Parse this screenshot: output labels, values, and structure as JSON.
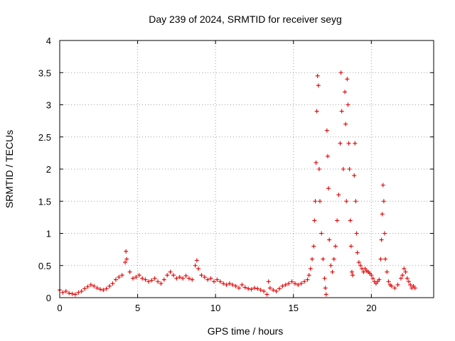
{
  "chart_data": {
    "type": "scatter",
    "title": "Day 239 of 2024, SRMTID for receiver seyg",
    "xlabel": "GPS time / hours",
    "ylabel": "SRMTID / TECUs",
    "xlim": [
      0,
      24
    ],
    "ylim": [
      0,
      4
    ],
    "xticks": [
      "0",
      "5",
      "10",
      "15",
      "20"
    ],
    "yticks": [
      "0",
      "0.5",
      "1",
      "1.5",
      "2",
      "2.5",
      "3",
      "3.5",
      "4"
    ],
    "grid": true,
    "marker": "+",
    "color": "#e00000",
    "series": [
      {
        "name": "SRMTID",
        "points": [
          [
            0.0,
            0.12
          ],
          [
            0.2,
            0.08
          ],
          [
            0.4,
            0.1
          ],
          [
            0.6,
            0.07
          ],
          [
            0.8,
            0.06
          ],
          [
            1.0,
            0.05
          ],
          [
            1.2,
            0.08
          ],
          [
            1.4,
            0.1
          ],
          [
            1.6,
            0.14
          ],
          [
            1.8,
            0.17
          ],
          [
            2.0,
            0.2
          ],
          [
            2.2,
            0.18
          ],
          [
            2.4,
            0.15
          ],
          [
            2.6,
            0.13
          ],
          [
            2.8,
            0.12
          ],
          [
            3.0,
            0.14
          ],
          [
            3.2,
            0.18
          ],
          [
            3.4,
            0.22
          ],
          [
            3.6,
            0.28
          ],
          [
            3.8,
            0.32
          ],
          [
            4.0,
            0.35
          ],
          [
            4.2,
            0.55
          ],
          [
            4.25,
            0.72
          ],
          [
            4.3,
            0.6
          ],
          [
            4.5,
            0.4
          ],
          [
            4.7,
            0.3
          ],
          [
            4.9,
            0.32
          ],
          [
            5.1,
            0.35
          ],
          [
            5.3,
            0.3
          ],
          [
            5.5,
            0.28
          ],
          [
            5.7,
            0.25
          ],
          [
            5.9,
            0.27
          ],
          [
            6.1,
            0.3
          ],
          [
            6.3,
            0.25
          ],
          [
            6.5,
            0.22
          ],
          [
            6.7,
            0.28
          ],
          [
            6.9,
            0.35
          ],
          [
            7.1,
            0.4
          ],
          [
            7.3,
            0.35
          ],
          [
            7.5,
            0.3
          ],
          [
            7.7,
            0.32
          ],
          [
            7.9,
            0.3
          ],
          [
            8.1,
            0.34
          ],
          [
            8.3,
            0.3
          ],
          [
            8.5,
            0.28
          ],
          [
            8.7,
            0.5
          ],
          [
            8.8,
            0.58
          ],
          [
            8.9,
            0.45
          ],
          [
            9.1,
            0.35
          ],
          [
            9.3,
            0.32
          ],
          [
            9.5,
            0.28
          ],
          [
            9.7,
            0.3
          ],
          [
            9.9,
            0.25
          ],
          [
            10.1,
            0.28
          ],
          [
            10.3,
            0.25
          ],
          [
            10.5,
            0.22
          ],
          [
            10.7,
            0.2
          ],
          [
            10.9,
            0.22
          ],
          [
            11.1,
            0.2
          ],
          [
            11.3,
            0.18
          ],
          [
            11.5,
            0.15
          ],
          [
            11.7,
            0.2
          ],
          [
            11.9,
            0.16
          ],
          [
            12.1,
            0.14
          ],
          [
            12.3,
            0.13
          ],
          [
            12.5,
            0.15
          ],
          [
            12.7,
            0.14
          ],
          [
            12.9,
            0.12
          ],
          [
            13.1,
            0.1
          ],
          [
            13.3,
            0.05
          ],
          [
            13.4,
            0.25
          ],
          [
            13.5,
            0.15
          ],
          [
            13.7,
            0.12
          ],
          [
            13.9,
            0.1
          ],
          [
            14.1,
            0.14
          ],
          [
            14.3,
            0.18
          ],
          [
            14.5,
            0.2
          ],
          [
            14.7,
            0.22
          ],
          [
            14.9,
            0.25
          ],
          [
            15.1,
            0.22
          ],
          [
            15.3,
            0.2
          ],
          [
            15.5,
            0.22
          ],
          [
            15.7,
            0.25
          ],
          [
            15.9,
            0.28
          ],
          [
            16.0,
            0.35
          ],
          [
            16.1,
            0.45
          ],
          [
            16.2,
            0.6
          ],
          [
            16.3,
            0.8
          ],
          [
            16.35,
            1.2
          ],
          [
            16.4,
            1.5
          ],
          [
            16.45,
            2.1
          ],
          [
            16.5,
            2.9
          ],
          [
            16.55,
            3.45
          ],
          [
            16.6,
            3.3
          ],
          [
            16.65,
            2.0
          ],
          [
            16.7,
            1.5
          ],
          [
            16.8,
            1.0
          ],
          [
            16.9,
            0.6
          ],
          [
            17.0,
            0.3
          ],
          [
            17.05,
            0.15
          ],
          [
            17.1,
            0.05
          ],
          [
            17.15,
            2.6
          ],
          [
            17.2,
            2.2
          ],
          [
            17.25,
            1.7
          ],
          [
            17.3,
            0.9
          ],
          [
            17.4,
            0.5
          ],
          [
            17.5,
            0.4
          ],
          [
            17.6,
            0.6
          ],
          [
            17.7,
            0.8
          ],
          [
            17.8,
            1.2
          ],
          [
            17.9,
            1.6
          ],
          [
            18.0,
            2.4
          ],
          [
            18.05,
            3.5
          ],
          [
            18.1,
            2.9
          ],
          [
            18.2,
            2.0
          ],
          [
            18.3,
            3.2
          ],
          [
            18.35,
            2.7
          ],
          [
            18.4,
            1.5
          ],
          [
            18.45,
            3.4
          ],
          [
            18.5,
            3.0
          ],
          [
            18.55,
            2.4
          ],
          [
            18.6,
            2.0
          ],
          [
            18.65,
            1.2
          ],
          [
            18.7,
            0.8
          ],
          [
            18.75,
            0.4
          ],
          [
            18.8,
            0.35
          ],
          [
            18.9,
            1.9
          ],
          [
            18.95,
            2.4
          ],
          [
            19.0,
            1.5
          ],
          [
            19.05,
            1.0
          ],
          [
            19.1,
            0.7
          ],
          [
            19.2,
            0.55
          ],
          [
            19.3,
            0.5
          ],
          [
            19.4,
            0.45
          ],
          [
            19.5,
            0.4
          ],
          [
            19.6,
            0.45
          ],
          [
            19.7,
            0.42
          ],
          [
            19.8,
            0.4
          ],
          [
            19.9,
            0.38
          ],
          [
            20.0,
            0.35
          ],
          [
            20.1,
            0.3
          ],
          [
            20.2,
            0.25
          ],
          [
            20.3,
            0.22
          ],
          [
            20.4,
            0.25
          ],
          [
            20.5,
            0.28
          ],
          [
            20.6,
            0.6
          ],
          [
            20.65,
            0.9
          ],
          [
            20.7,
            1.3
          ],
          [
            20.75,
            1.75
          ],
          [
            20.8,
            1.5
          ],
          [
            20.85,
            1.0
          ],
          [
            20.9,
            0.6
          ],
          [
            21.0,
            0.4
          ],
          [
            21.1,
            0.25
          ],
          [
            21.2,
            0.2
          ],
          [
            21.3,
            0.18
          ],
          [
            21.5,
            0.15
          ],
          [
            21.7,
            0.2
          ],
          [
            21.9,
            0.3
          ],
          [
            22.0,
            0.35
          ],
          [
            22.1,
            0.45
          ],
          [
            22.2,
            0.4
          ],
          [
            22.3,
            0.3
          ],
          [
            22.4,
            0.25
          ],
          [
            22.5,
            0.2
          ],
          [
            22.6,
            0.15
          ],
          [
            22.7,
            0.18
          ],
          [
            22.8,
            0.15
          ]
        ]
      }
    ]
  }
}
